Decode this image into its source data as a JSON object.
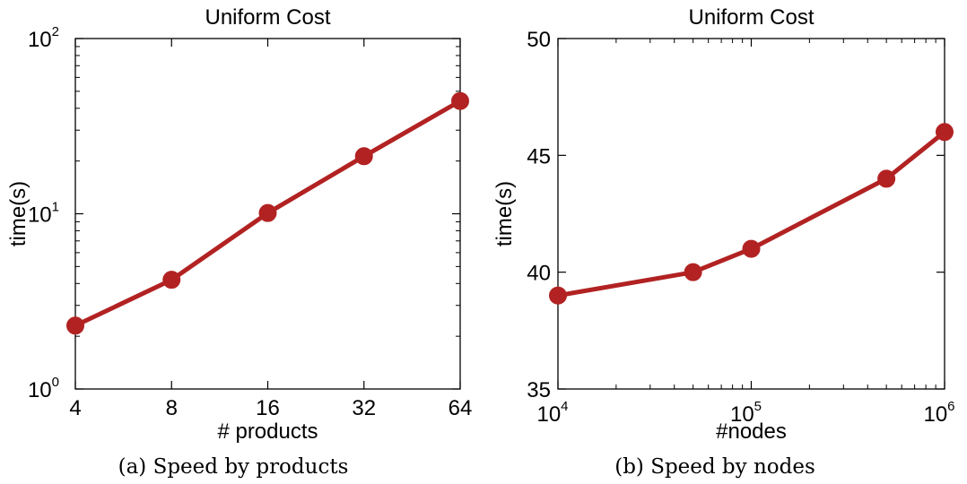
{
  "captions": [
    "(a) Speed by products",
    "(b) Speed by nodes"
  ],
  "colors": {
    "series": "#b22222",
    "axis": "#000000",
    "background": "#ffffff"
  },
  "chart_data": [
    {
      "type": "line",
      "title": "Uniform Cost",
      "xlabel": "# products",
      "ylabel": "time(s)",
      "x_scale": "log2",
      "y_scale": "log10",
      "xlim": [
        4,
        64
      ],
      "ylim": [
        1,
        100
      ],
      "x_ticks": [
        {
          "value": 4,
          "base": "4"
        },
        {
          "value": 8,
          "base": "8"
        },
        {
          "value": 16,
          "base": "16"
        },
        {
          "value": 32,
          "base": "32"
        },
        {
          "value": 64,
          "base": "64"
        }
      ],
      "y_ticks": [
        {
          "value": 1,
          "base": "10",
          "exp": "0"
        },
        {
          "value": 10,
          "base": "10",
          "exp": "1"
        },
        {
          "value": 100,
          "base": "10",
          "exp": "2"
        }
      ],
      "x": [
        4,
        8,
        16,
        32,
        64
      ],
      "y": [
        2.3,
        4.2,
        10.1,
        21.3,
        44
      ],
      "grid": false,
      "legend": "none"
    },
    {
      "type": "line",
      "title": "Uniform Cost",
      "xlabel": "#nodes",
      "ylabel": "time(s)",
      "x_scale": "log10",
      "y_scale": "linear",
      "xlim": [
        10000,
        1000000
      ],
      "ylim": [
        35,
        50
      ],
      "x_ticks": [
        {
          "value": 10000,
          "base": "10",
          "exp": "4"
        },
        {
          "value": 100000,
          "base": "10",
          "exp": "5"
        },
        {
          "value": 1000000,
          "base": "10",
          "exp": "6"
        }
      ],
      "y_ticks": [
        {
          "value": 35,
          "base": "35"
        },
        {
          "value": 40,
          "base": "40"
        },
        {
          "value": 45,
          "base": "45"
        },
        {
          "value": 50,
          "base": "50"
        }
      ],
      "x": [
        10000,
        50000,
        100000,
        500000,
        1000000
      ],
      "y": [
        39,
        40,
        41,
        44,
        46
      ],
      "grid": false,
      "legend": "none"
    }
  ]
}
